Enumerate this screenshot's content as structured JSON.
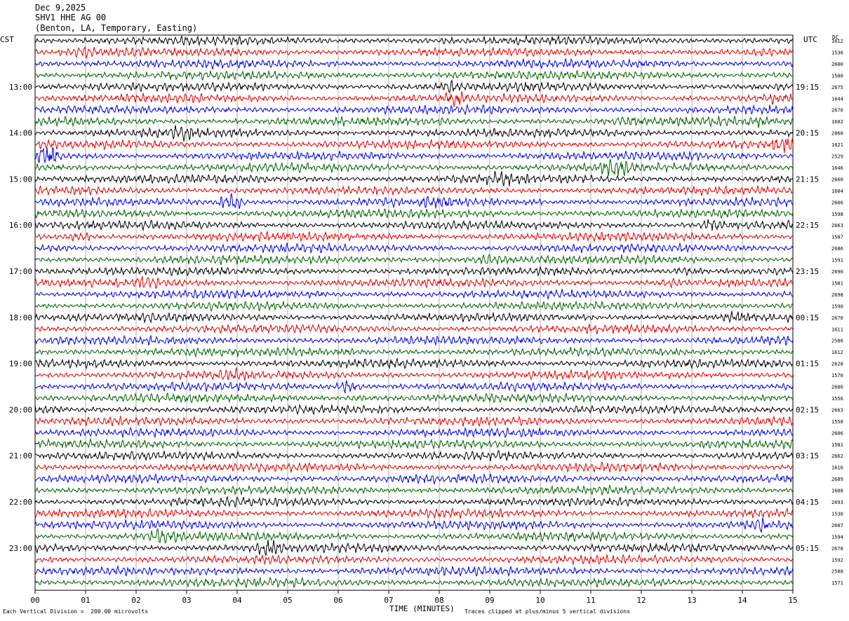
{
  "header": {
    "date": "Dec 9,2025",
    "station": "SHV1 HHE AG 00",
    "location": "(Benton, LA, Temporary, Easting)"
  },
  "left_tz": "CST",
  "right_tz": "UTC",
  "dc_label": "DC",
  "footer": {
    "scale_note": "Each Vertical Division =  200.00 microvolts",
    "xlabel": "TIME (MINUTES)",
    "clip_note": "Traces clipped at plus/minus 5 vertical divisions"
  },
  "colors": {
    "trace_cycle": [
      "#000000",
      "#e00000",
      "#0000e0",
      "#006000"
    ],
    "grid": "#b0b0b0"
  },
  "chart_data": {
    "type": "line",
    "title": "SHV1 HHE AG 00",
    "xlabel": "TIME (MINUTES)",
    "xlim": [
      0,
      15
    ],
    "x_ticks": [
      "00",
      "01",
      "02",
      "03",
      "04",
      "05",
      "06",
      "07",
      "08",
      "09",
      "10",
      "11",
      "12",
      "13",
      "14",
      "15"
    ],
    "left_hour_labels": [
      "13:00",
      "14:00",
      "15:00",
      "16:00",
      "17:00",
      "18:00",
      "19:00",
      "20:00",
      "21:00",
      "22:00",
      "23:00"
    ],
    "right_hour_labels": [
      "19:15",
      "20:15",
      "21:15",
      "22:15",
      "23:15",
      "00:15",
      "01:15",
      "02:15",
      "03:15",
      "04:15",
      "05:15"
    ],
    "dc_offsets": [
      "1612",
      "1536",
      "2600",
      "1580",
      "2675",
      "1644",
      "2670",
      "1602",
      "2868",
      "1621",
      "2529",
      "1646",
      "2660",
      "1604",
      "2606",
      "1598",
      "2663",
      "1587",
      "2686",
      "1591",
      "2690",
      "1581",
      "2698",
      "1590",
      "2670",
      "1611",
      "2586",
      "1612",
      "2628",
      "1570",
      "2606",
      "1556",
      "2663",
      "1558",
      "2606",
      "1581",
      "2662",
      "1616",
      "2689",
      "1608",
      "2693",
      "1530",
      "2607",
      "1594",
      "2670",
      "1592",
      "2588",
      "1571"
    ],
    "traces_per_hour": 4,
    "trace_count": 48,
    "events": [
      {
        "trace": 1,
        "minute": 1.0,
        "amp": 1.3
      },
      {
        "trace": 4,
        "minute": 8.2,
        "amp": 1.4
      },
      {
        "trace": 5,
        "minute": 8.3,
        "amp": 1.5
      },
      {
        "trace": 5,
        "minute": 14.7,
        "amp": 1.4
      },
      {
        "trace": 7,
        "minute": 11.7,
        "amp": 1.3
      },
      {
        "trace": 7,
        "minute": 14.3,
        "amp": 1.4
      },
      {
        "trace": 8,
        "minute": 2.9,
        "amp": 1.5
      },
      {
        "trace": 9,
        "minute": 14.8,
        "amp": 1.6
      },
      {
        "trace": 10,
        "minute": 0.25,
        "amp": 2.6
      },
      {
        "trace": 11,
        "minute": 11.5,
        "amp": 1.9
      },
      {
        "trace": 12,
        "minute": 9.2,
        "amp": 1.5
      },
      {
        "trace": 14,
        "minute": 3.9,
        "amp": 2.5
      },
      {
        "trace": 14,
        "minute": 7.9,
        "amp": 1.4
      },
      {
        "trace": 16,
        "minute": 13.4,
        "amp": 1.8
      },
      {
        "trace": 17,
        "minute": 0.9,
        "amp": 1.6
      },
      {
        "trace": 19,
        "minute": 9.0,
        "amp": 1.6
      },
      {
        "trace": 20,
        "minute": 12.9,
        "amp": 1.9
      },
      {
        "trace": 21,
        "minute": 2.2,
        "amp": 1.6
      },
      {
        "trace": 21,
        "minute": 12.6,
        "amp": 1.4
      },
      {
        "trace": 24,
        "minute": 13.9,
        "amp": 1.5
      },
      {
        "trace": 29,
        "minute": 3.9,
        "amp": 1.4
      },
      {
        "trace": 30,
        "minute": 6.2,
        "amp": 2.3
      },
      {
        "trace": 31,
        "minute": 6.4,
        "amp": 1.3
      },
      {
        "trace": 42,
        "minute": 14.3,
        "amp": 1.6
      },
      {
        "trace": 43,
        "minute": 2.5,
        "amp": 1.7
      },
      {
        "trace": 44,
        "minute": 4.6,
        "amp": 1.6
      }
    ]
  }
}
